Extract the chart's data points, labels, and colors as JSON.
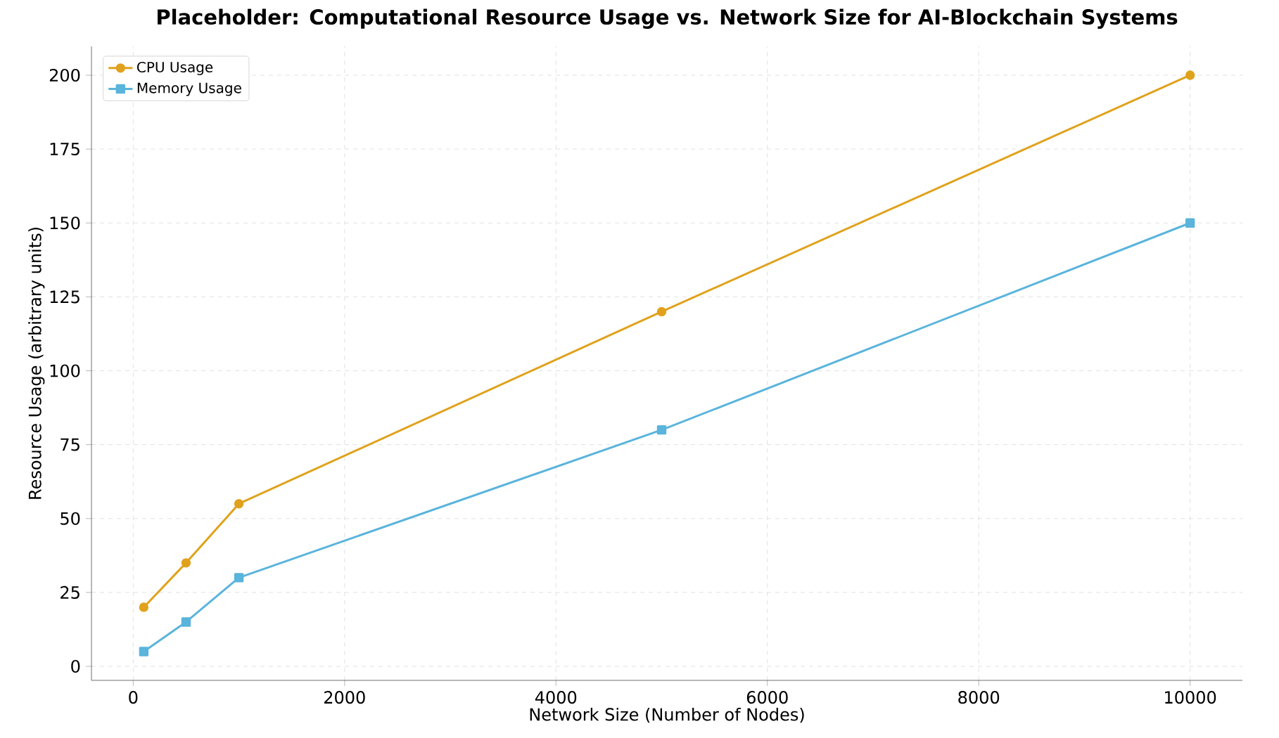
{
  "chart_data": {
    "type": "line",
    "title": "Placeholder: Computational Resource Usage vs. Network Size for AI-Blockchain Systems",
    "xlabel": "Network Size (Number of Nodes)",
    "ylabel": "Resource Usage (arbitrary units)",
    "x": [
      100,
      500,
      1000,
      5000,
      10000
    ],
    "series": [
      {
        "name": "CPU Usage",
        "color": "#e0a21c",
        "marker": "circle",
        "values": [
          20,
          35,
          55,
          120,
          200
        ]
      },
      {
        "name": "Memory Usage",
        "color": "#5ab4dc",
        "marker": "square",
        "values": [
          5,
          15,
          30,
          80,
          150
        ]
      }
    ],
    "xlim": [
      -395,
      10495
    ],
    "ylim": [
      -4.75,
      209.75
    ],
    "xticks": [
      0,
      2000,
      4000,
      6000,
      8000,
      10000
    ],
    "yticks": [
      0,
      25,
      50,
      75,
      100,
      125,
      150,
      175,
      200
    ],
    "grid": true,
    "legend": "top left",
    "line_style": "solid"
  }
}
